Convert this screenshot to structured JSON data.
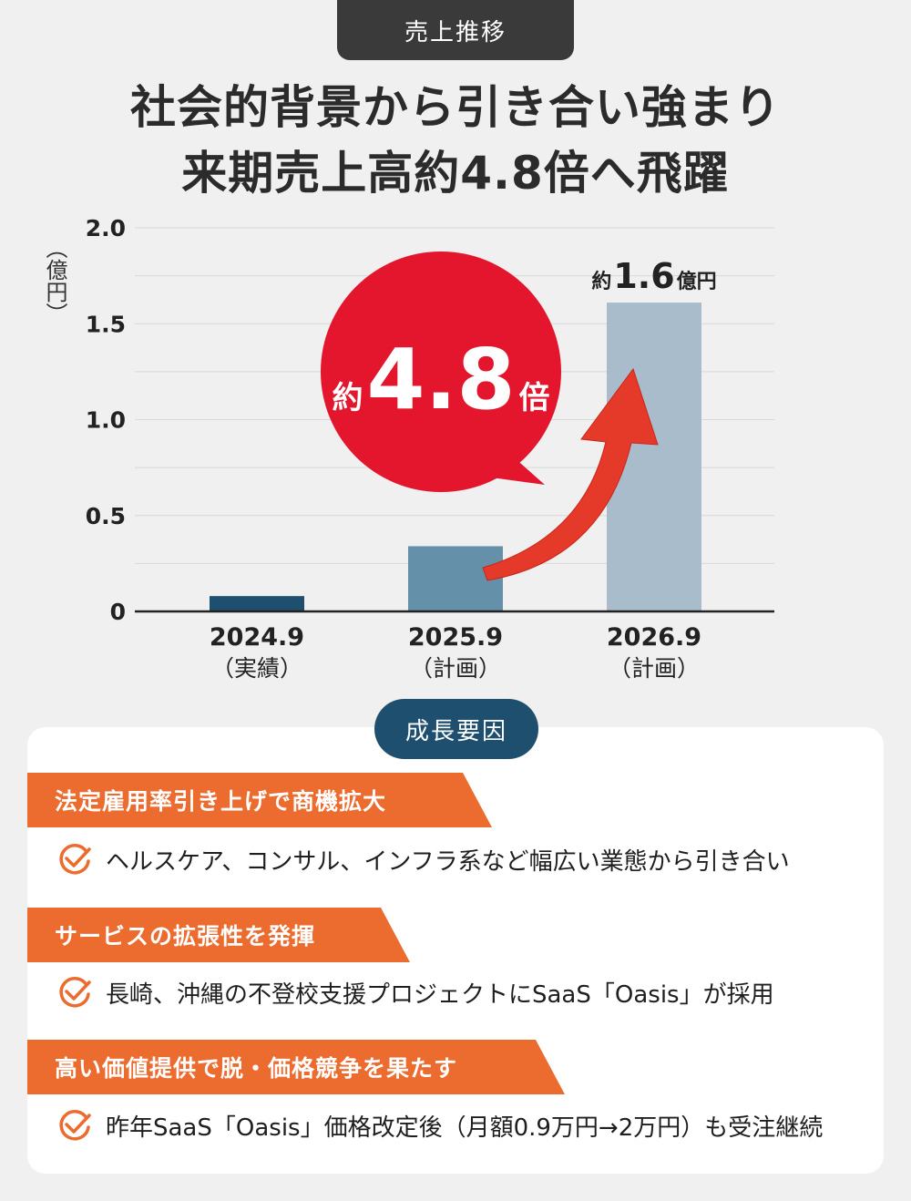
{
  "header": {
    "tab_label": "売上推移",
    "headline_line1": "社会的背景から引き合い強まり",
    "headline_line2": "来期売上高約4.8倍へ飛躍"
  },
  "colors": {
    "bar_2024": "#1f4f6e",
    "bar_2025": "#6590aa",
    "bar_2026": "#a8bccb",
    "badge_red": "#e3162d",
    "arrow_red": "#e53a2a",
    "accent_orange": "#ec6b2e",
    "pill_navy": "#1f4f6e"
  },
  "chart_data": {
    "type": "bar",
    "ylabel": "（億円）",
    "ylim": [
      0,
      2.0
    ],
    "y_ticks": [
      "0",
      "0.5",
      "1.0",
      "1.5",
      "2.0"
    ],
    "y_tick_values": [
      0,
      0.5,
      1.0,
      1.5,
      2.0
    ],
    "grid": true,
    "categories": [
      "2024.9",
      "2025.9",
      "2026.9"
    ],
    "category_notes": [
      "（実績）",
      "（計画）",
      "（計画）"
    ],
    "values": [
      0.08,
      0.34,
      1.61
    ],
    "annotation_prefix": "約",
    "annotation_value": "1.6",
    "annotation_unit": "億円",
    "badge_prefix": "約",
    "badge_value": "4.8",
    "badge_suffix": "倍"
  },
  "growth_factors": {
    "pill_label": "成長要因",
    "items": [
      {
        "title": "法定雇用率引き上げで商機拡大",
        "detail": "ヘルスケア、コンサル、インフラ系など幅広い業態から引き合い"
      },
      {
        "title": "サービスの拡張性を発揮",
        "detail": "長崎、沖縄の不登校支援プロジェクトにSaaS「Oasis」が採用"
      },
      {
        "title": "高い価値提供で脱・価格競争を果たす",
        "detail": "昨年SaaS「Oasis」価格改定後（月額0.9万円→2万円）も受注継続"
      }
    ]
  }
}
